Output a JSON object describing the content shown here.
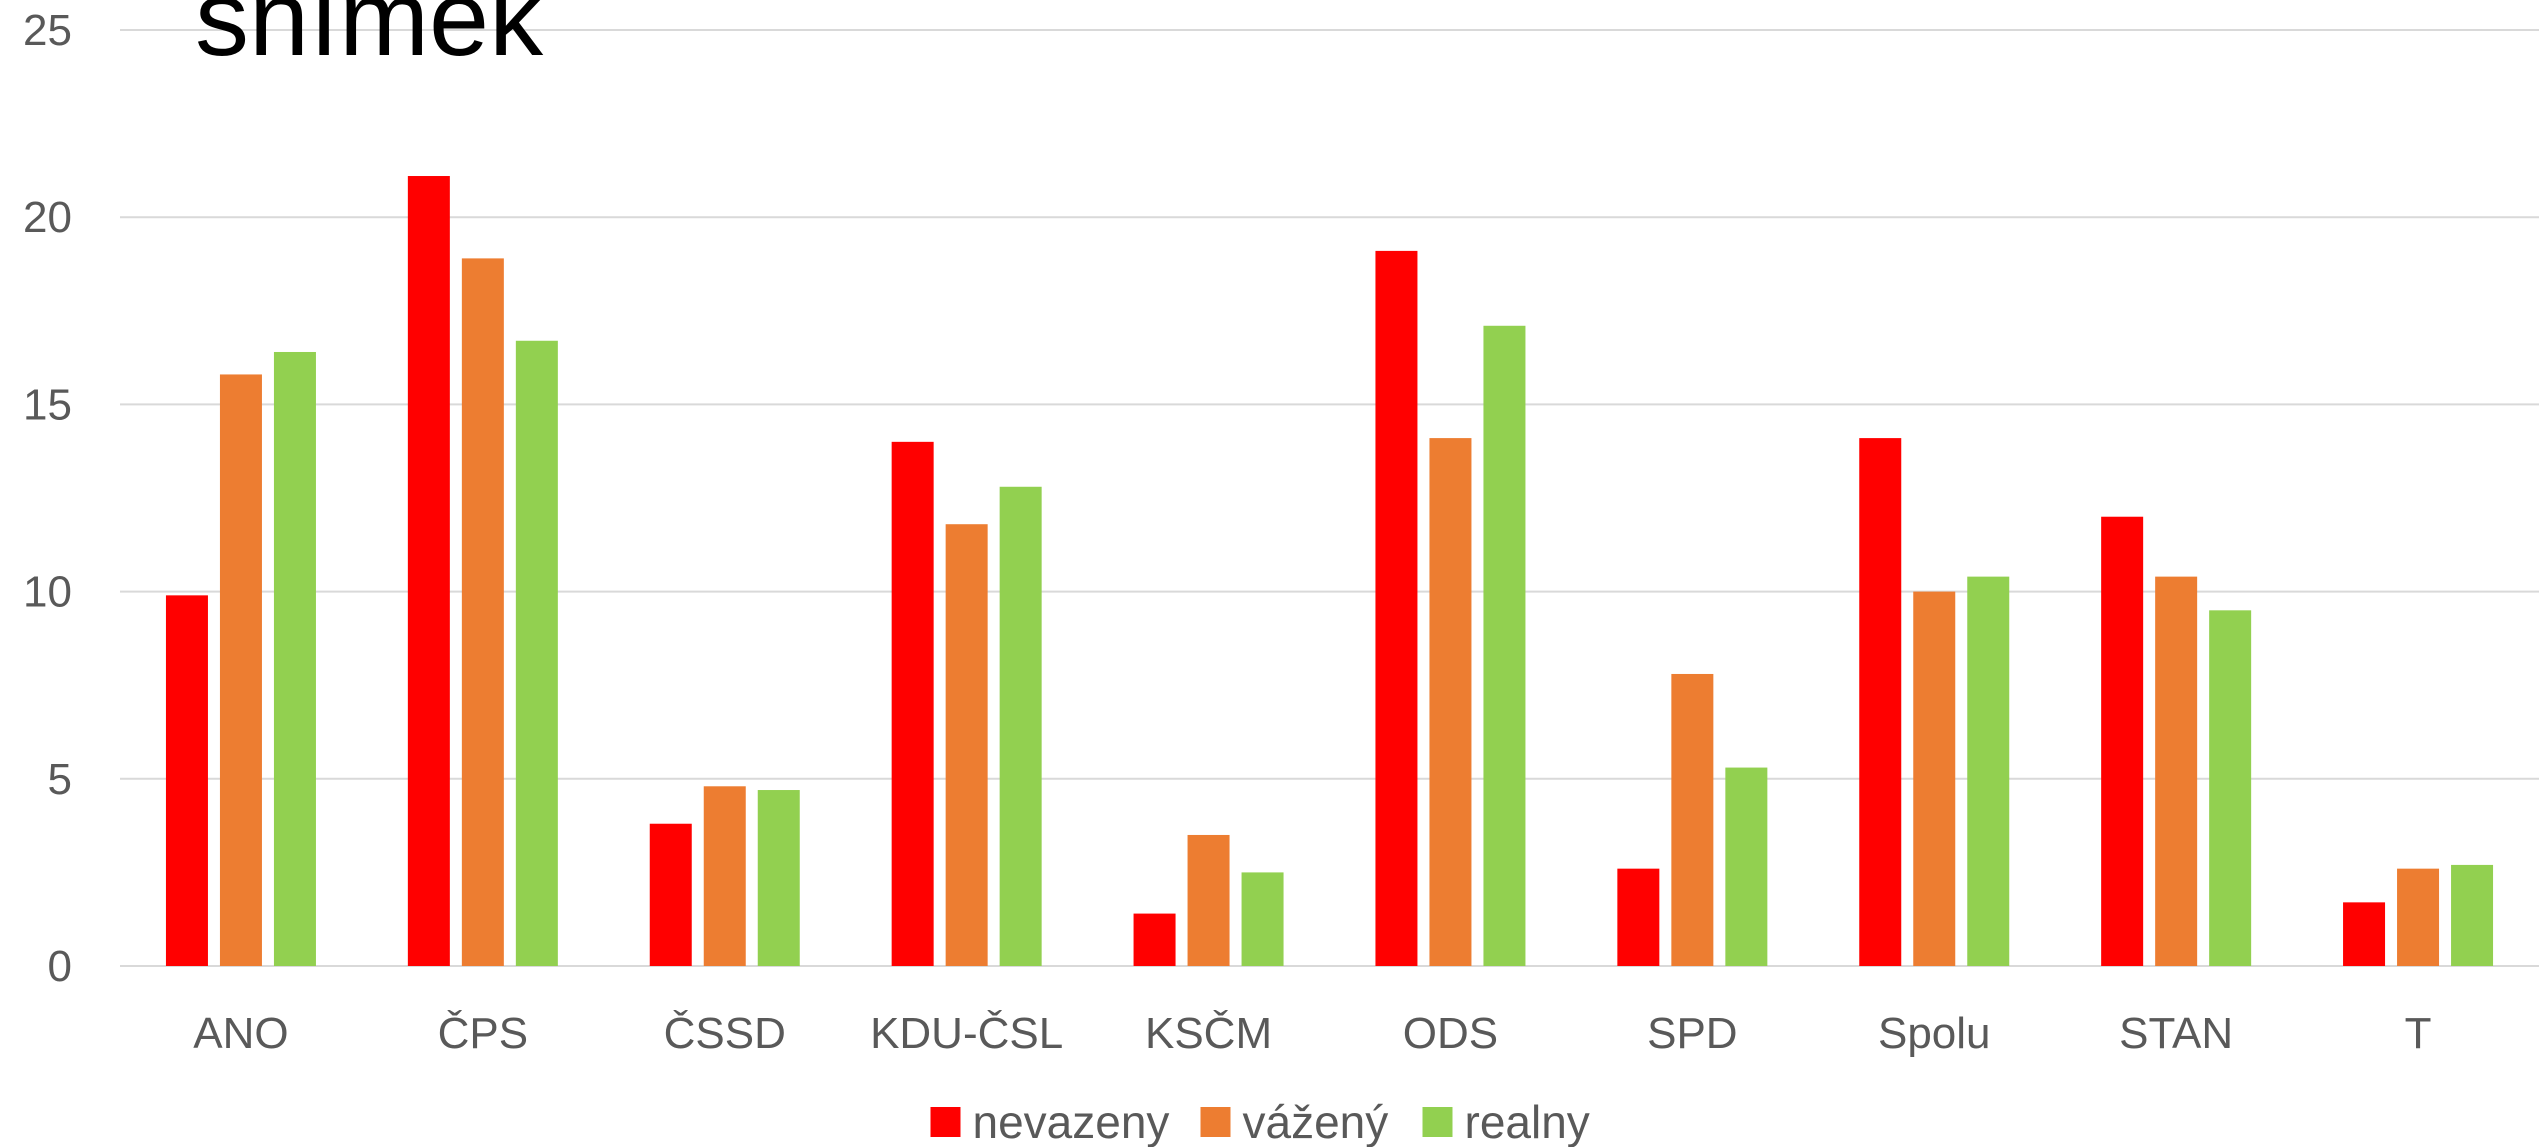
{
  "title": "snímek",
  "chart_data": {
    "type": "bar",
    "title": "snímek",
    "xlabel": "",
    "ylabel": "",
    "ylim": [
      0,
      25
    ],
    "yticks": [
      0,
      5,
      10,
      15,
      20,
      25
    ],
    "grid": true,
    "legend_position": "bottom",
    "categories": [
      "ANO",
      "ČPS",
      "ČSSD",
      "KDU-ČSL",
      "KSČM",
      "ODS",
      "SPD",
      "Spolu",
      "STAN",
      "T"
    ],
    "series": [
      {
        "name": "nevazeny",
        "color": "#ff0000",
        "values": [
          9.9,
          21.1,
          3.8,
          14.0,
          1.4,
          19.1,
          2.6,
          14.1,
          12.0,
          1.7
        ]
      },
      {
        "name": "vážený",
        "color": "#ed7d31",
        "values": [
          15.8,
          18.9,
          4.8,
          11.8,
          3.5,
          14.1,
          7.8,
          10.0,
          10.4,
          2.6
        ]
      },
      {
        "name": "realny",
        "color": "#92d050",
        "values": [
          16.4,
          16.7,
          4.7,
          12.8,
          2.5,
          17.1,
          5.3,
          10.4,
          9.5,
          2.7
        ]
      }
    ]
  }
}
